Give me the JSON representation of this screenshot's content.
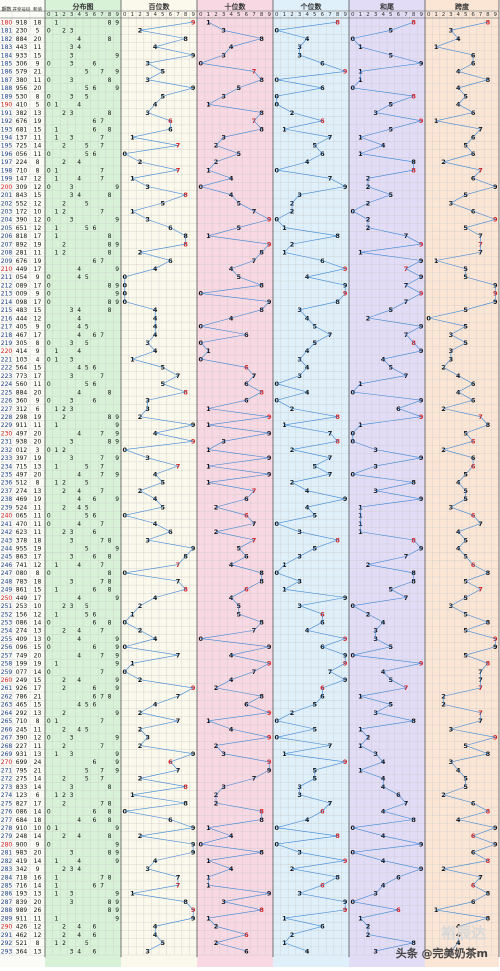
{
  "chart_data": {
    "type": "table",
    "columns": [
      "期数",
      "开奖号码",
      "和值",
      "分布图",
      "百位数",
      "十位数",
      "个位数",
      "和尾",
      "跨度"
    ],
    "digits": [
      "0",
      "1",
      "2",
      "3",
      "4",
      "5",
      "6",
      "7",
      "8",
      "9"
    ],
    "colors": {
      "period_red": "#d21c1c",
      "fenbu_bg": "#d8f2d8",
      "bai_bg": "#fbf8ec",
      "shi_bg": "#f8d8e2",
      "ge_bg": "#dff0fa",
      "hewei_bg": "#e2dcf7",
      "kuadu_bg": "#fbe6d6",
      "line_blue": "#2a7cd2",
      "red_digit": "#d21c1c"
    },
    "rows": [
      {
        "issue": "180",
        "nums": "918",
        "sum": "18"
      },
      {
        "issue": "181",
        "nums": "230",
        "sum": "5"
      },
      {
        "issue": "182",
        "nums": "884",
        "sum": "20"
      },
      {
        "issue": "183",
        "nums": "443",
        "sum": "11"
      },
      {
        "issue": "184",
        "nums": "933",
        "sum": "15"
      },
      {
        "issue": "185",
        "nums": "306",
        "sum": "9"
      },
      {
        "issue": "186",
        "nums": "579",
        "sum": "21"
      },
      {
        "issue": "187",
        "nums": "380",
        "sum": "11"
      },
      {
        "issue": "188",
        "nums": "956",
        "sum": "20"
      },
      {
        "issue": "189",
        "nums": "530",
        "sum": "8"
      },
      {
        "issue": "190",
        "nums": "410",
        "sum": "5"
      },
      {
        "issue": "191",
        "nums": "382",
        "sum": "13"
      },
      {
        "issue": "192",
        "nums": "676",
        "sum": "19"
      },
      {
        "issue": "193",
        "nums": "681",
        "sum": "15"
      },
      {
        "issue": "194",
        "nums": "137",
        "sum": "11"
      },
      {
        "issue": "195",
        "nums": "725",
        "sum": "14"
      },
      {
        "issue": "196",
        "nums": "056",
        "sum": "11"
      },
      {
        "issue": "197",
        "nums": "224",
        "sum": "8"
      },
      {
        "issue": "198",
        "nums": "710",
        "sum": "8"
      },
      {
        "issue": "199",
        "nums": "147",
        "sum": "12"
      },
      {
        "issue": "200",
        "nums": "309",
        "sum": "12"
      },
      {
        "issue": "201",
        "nums": "843",
        "sum": "15"
      },
      {
        "issue": "202",
        "nums": "552",
        "sum": "12"
      },
      {
        "issue": "203",
        "nums": "172",
        "sum": "10"
      },
      {
        "issue": "204",
        "nums": "390",
        "sum": "12"
      },
      {
        "issue": "205",
        "nums": "651",
        "sum": "12"
      },
      {
        "issue": "206",
        "nums": "818",
        "sum": "17"
      },
      {
        "issue": "207",
        "nums": "892",
        "sum": "19"
      },
      {
        "issue": "208",
        "nums": "281",
        "sum": "11"
      },
      {
        "issue": "209",
        "nums": "676",
        "sum": "19"
      },
      {
        "issue": "210",
        "nums": "449",
        "sum": "17"
      },
      {
        "issue": "211",
        "nums": "054",
        "sum": "9"
      },
      {
        "issue": "212",
        "nums": "089",
        "sum": "17"
      },
      {
        "issue": "213",
        "nums": "009",
        "sum": "9"
      },
      {
        "issue": "214",
        "nums": "098",
        "sum": "17"
      },
      {
        "issue": "215",
        "nums": "483",
        "sum": "15"
      },
      {
        "issue": "216",
        "nums": "444",
        "sum": "12"
      },
      {
        "issue": "217",
        "nums": "405",
        "sum": "9"
      },
      {
        "issue": "218",
        "nums": "467",
        "sum": "17"
      },
      {
        "issue": "219",
        "nums": "305",
        "sum": "8"
      },
      {
        "issue": "220",
        "nums": "414",
        "sum": "9"
      },
      {
        "issue": "221",
        "nums": "103",
        "sum": "4"
      },
      {
        "issue": "222",
        "nums": "564",
        "sum": "15"
      },
      {
        "issue": "223",
        "nums": "773",
        "sum": "17"
      },
      {
        "issue": "224",
        "nums": "560",
        "sum": "11"
      },
      {
        "issue": "225",
        "nums": "884",
        "sum": "20"
      },
      {
        "issue": "226",
        "nums": "360",
        "sum": "9"
      },
      {
        "issue": "227",
        "nums": "312",
        "sum": "6"
      },
      {
        "issue": "228",
        "nums": "298",
        "sum": "19"
      },
      {
        "issue": "229",
        "nums": "911",
        "sum": "11"
      },
      {
        "issue": "230",
        "nums": "497",
        "sum": "20"
      },
      {
        "issue": "231",
        "nums": "938",
        "sum": "20"
      },
      {
        "issue": "232",
        "nums": "012",
        "sum": "3"
      },
      {
        "issue": "233",
        "nums": "397",
        "sum": "19"
      },
      {
        "issue": "234",
        "nums": "715",
        "sum": "13"
      },
      {
        "issue": "235",
        "nums": "497",
        "sum": "20"
      },
      {
        "issue": "236",
        "nums": "512",
        "sum": "8"
      },
      {
        "issue": "237",
        "nums": "274",
        "sum": "13"
      },
      {
        "issue": "238",
        "nums": "469",
        "sum": "19"
      },
      {
        "issue": "239",
        "nums": "524",
        "sum": "11"
      },
      {
        "issue": "240",
        "nums": "065",
        "sum": "11"
      },
      {
        "issue": "241",
        "nums": "470",
        "sum": "11"
      },
      {
        "issue": "242",
        "nums": "623",
        "sum": "11"
      },
      {
        "issue": "243",
        "nums": "378",
        "sum": "18"
      },
      {
        "issue": "244",
        "nums": "955",
        "sum": "19"
      },
      {
        "issue": "245",
        "nums": "863",
        "sum": "17"
      },
      {
        "issue": "246",
        "nums": "741",
        "sum": "12"
      },
      {
        "issue": "247",
        "nums": "080",
        "sum": "8"
      },
      {
        "issue": "248",
        "nums": "783",
        "sum": "18"
      },
      {
        "issue": "249",
        "nums": "861",
        "sum": "15"
      },
      {
        "issue": "250",
        "nums": "449",
        "sum": "17"
      },
      {
        "issue": "251",
        "nums": "253",
        "sum": "10"
      },
      {
        "issue": "252",
        "nums": "156",
        "sum": "12"
      },
      {
        "issue": "253",
        "nums": "086",
        "sum": "14"
      },
      {
        "issue": "254",
        "nums": "274",
        "sum": "13"
      },
      {
        "issue": "255",
        "nums": "409",
        "sum": "13"
      },
      {
        "issue": "256",
        "nums": "096",
        "sum": "15"
      },
      {
        "issue": "257",
        "nums": "749",
        "sum": "20"
      },
      {
        "issue": "258",
        "nums": "199",
        "sum": "19"
      },
      {
        "issue": "259",
        "nums": "077",
        "sum": "14"
      },
      {
        "issue": "260",
        "nums": "249",
        "sum": "15"
      },
      {
        "issue": "261",
        "nums": "926",
        "sum": "17"
      },
      {
        "issue": "262",
        "nums": "786",
        "sum": "21"
      },
      {
        "issue": "263",
        "nums": "465",
        "sum": "15"
      },
      {
        "issue": "264",
        "nums": "292",
        "sum": "13"
      },
      {
        "issue": "265",
        "nums": "710",
        "sum": "8"
      },
      {
        "issue": "266",
        "nums": "245",
        "sum": "11"
      },
      {
        "issue": "267",
        "nums": "390",
        "sum": "12"
      },
      {
        "issue": "268",
        "nums": "227",
        "sum": "11"
      },
      {
        "issue": "269",
        "nums": "931",
        "sum": "13"
      },
      {
        "issue": "270",
        "nums": "699",
        "sum": "24"
      },
      {
        "issue": "271",
        "nums": "795",
        "sum": "21"
      },
      {
        "issue": "272",
        "nums": "275",
        "sum": "14"
      },
      {
        "issue": "273",
        "nums": "833",
        "sum": "14"
      },
      {
        "issue": "274",
        "nums": "123",
        "sum": "6"
      },
      {
        "issue": "275",
        "nums": "827",
        "sum": "17"
      },
      {
        "issue": "276",
        "nums": "086",
        "sum": "14"
      },
      {
        "issue": "277",
        "nums": "684",
        "sum": "18"
      },
      {
        "issue": "278",
        "nums": "910",
        "sum": "10"
      },
      {
        "issue": "279",
        "nums": "248",
        "sum": "14"
      },
      {
        "issue": "280",
        "nums": "900",
        "sum": "9"
      },
      {
        "issue": "281",
        "nums": "983",
        "sum": "20"
      },
      {
        "issue": "282",
        "nums": "419",
        "sum": "14"
      },
      {
        "issue": "283",
        "nums": "342",
        "sum": "9"
      },
      {
        "issue": "284",
        "nums": "718",
        "sum": "16"
      },
      {
        "issue": "285",
        "nums": "716",
        "sum": "14"
      },
      {
        "issue": "286",
        "nums": "193",
        "sum": "13"
      },
      {
        "issue": "287",
        "nums": "839",
        "sum": "20"
      },
      {
        "issue": "288",
        "nums": "989",
        "sum": "26"
      },
      {
        "issue": "289",
        "nums": "911",
        "sum": "11"
      },
      {
        "issue": "290",
        "nums": "426",
        "sum": "12"
      },
      {
        "issue": "291",
        "nums": "462",
        "sum": "12"
      },
      {
        "issue": "292",
        "nums": "521",
        "sum": "8"
      },
      {
        "issue": "293",
        "nums": "364",
        "sum": "13"
      }
    ]
  },
  "watermark": {
    "brand": "裕辰达",
    "source": "头条 @完美奶茶m"
  }
}
